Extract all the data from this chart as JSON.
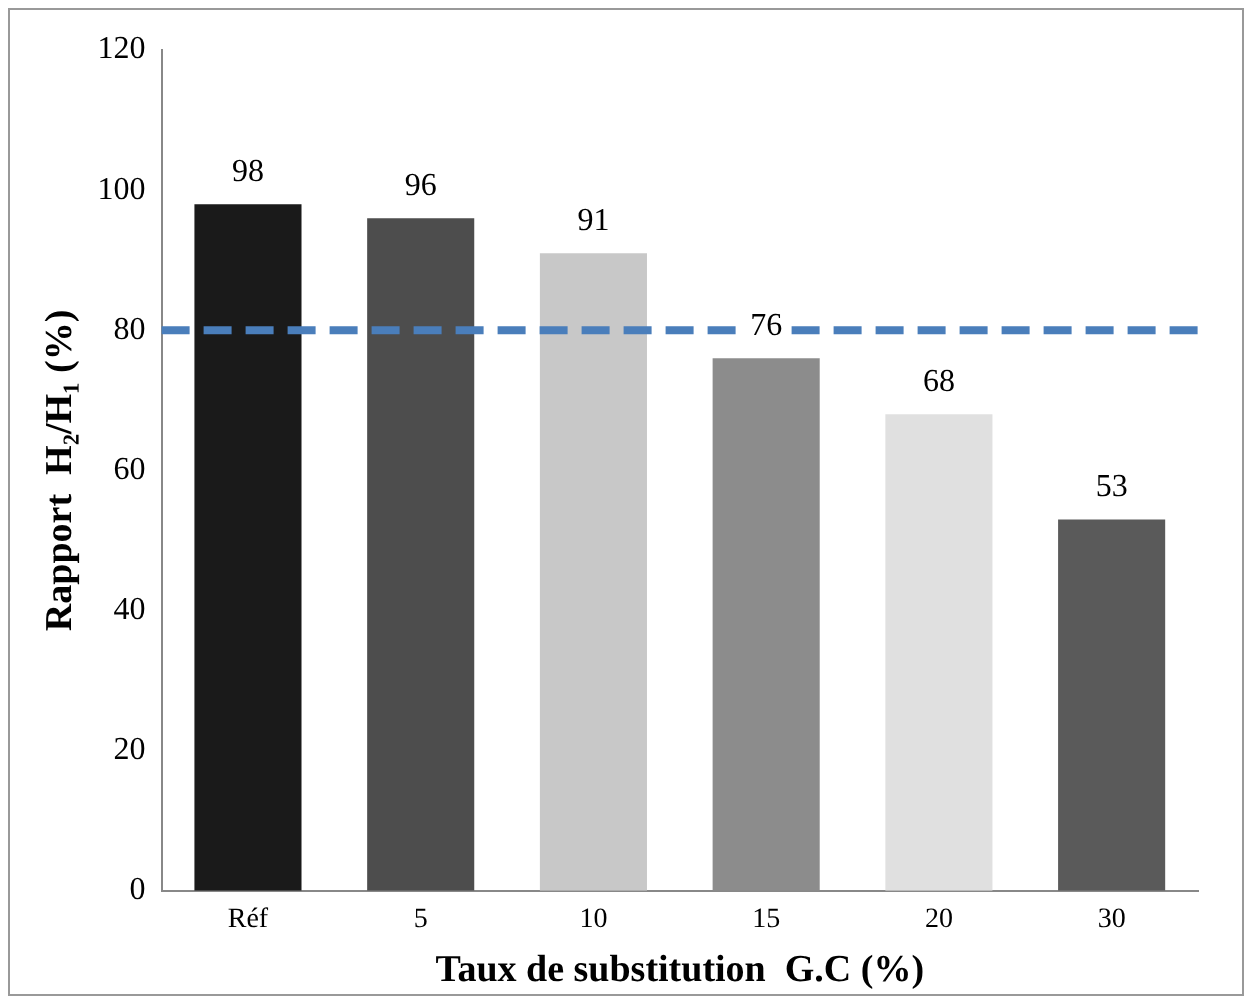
{
  "chart_data": {
    "type": "bar",
    "xlabel": "Taux de substitution  G.C (%)",
    "ylabel": "Rapport  H₂/H₁ (%)",
    "categories": [
      "Réf",
      "5",
      "10",
      "15",
      "20",
      "30"
    ],
    "values": [
      98,
      96,
      91,
      76,
      68,
      53
    ],
    "colors": [
      "#1a1a1a",
      "#4d4d4d",
      "#c8c8c8",
      "#8c8c8c",
      "#e0e0e0",
      "#5a5a5a"
    ],
    "ylim": [
      0,
      120
    ],
    "yticks": [
      0,
      20,
      40,
      60,
      80,
      100,
      120
    ],
    "data_labels": true,
    "grid": false,
    "legend": false,
    "ref_lines": [
      {
        "axis": "y",
        "value": 80,
        "color": "#4a7ebb",
        "line_style": "dashed"
      }
    ]
  }
}
